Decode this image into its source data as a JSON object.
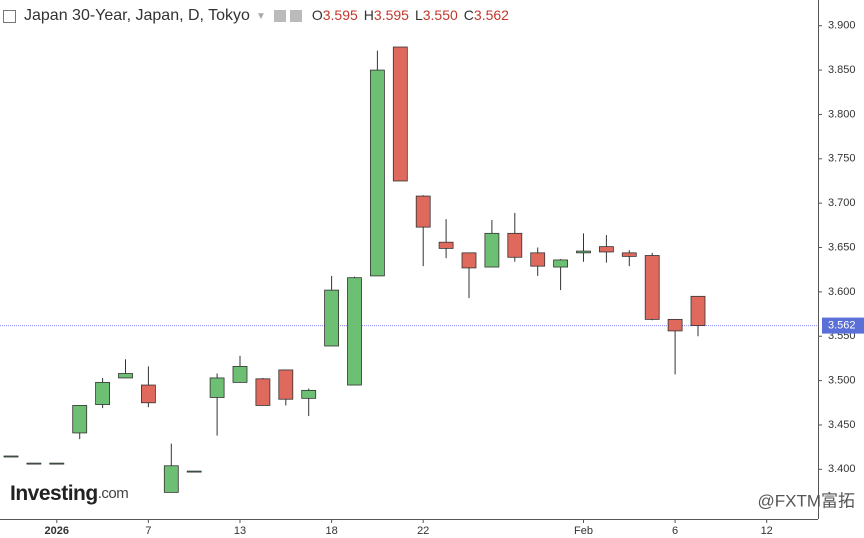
{
  "chart_data": {
    "type": "candlestick",
    "title": "Japan 30-Year, Japan, D, Tokyo",
    "ohlc_legend": [
      {
        "label": "O",
        "value": "3.595"
      },
      {
        "label": "H",
        "value": "3.595"
      },
      {
        "label": "L",
        "value": "3.550"
      },
      {
        "label": "C",
        "value": "3.562"
      }
    ],
    "categories": [
      null,
      null,
      "2026",
      null,
      null,
      null,
      "7",
      null,
      null,
      null,
      "13",
      null,
      null,
      null,
      "18",
      null,
      null,
      null,
      "22",
      null,
      null,
      null,
      null,
      null,
      null,
      "Feb",
      null,
      null,
      null,
      "6",
      null,
      null,
      null,
      "12"
    ],
    "open": [
      3.415,
      3.407,
      3.407,
      3.441,
      3.473,
      3.503,
      3.495,
      3.374,
      3.398,
      3.481,
      3.498,
      3.502,
      3.512,
      3.48,
      3.539,
      3.495,
      3.618,
      3.876,
      3.708,
      3.656,
      3.644,
      3.628,
      3.666,
      3.644,
      3.628,
      3.644,
      3.651,
      3.644,
      3.641,
      3.569,
      3.595,
      null,
      null,
      null
    ],
    "high": [
      3.415,
      3.407,
      3.407,
      3.472,
      3.503,
      3.524,
      3.516,
      3.429,
      3.398,
      3.508,
      3.528,
      3.503,
      3.512,
      3.491,
      3.618,
      3.617,
      3.872,
      3.876,
      3.709,
      3.682,
      3.644,
      3.681,
      3.689,
      3.65,
      3.637,
      3.666,
      3.664,
      3.647,
      3.644,
      3.569,
      3.595,
      null,
      null,
      null
    ],
    "low": [
      3.415,
      3.407,
      3.407,
      3.434,
      3.469,
      3.503,
      3.47,
      3.374,
      3.398,
      3.438,
      3.498,
      3.472,
      3.472,
      3.46,
      3.539,
      3.495,
      3.618,
      3.725,
      3.629,
      3.638,
      3.593,
      3.628,
      3.634,
      3.618,
      3.602,
      3.634,
      3.633,
      3.629,
      3.568,
      3.507,
      3.55,
      null,
      null,
      null
    ],
    "close": [
      3.415,
      3.407,
      3.407,
      3.472,
      3.498,
      3.508,
      3.475,
      3.404,
      3.398,
      3.503,
      3.516,
      3.472,
      3.479,
      3.489,
      3.602,
      3.616,
      3.85,
      3.725,
      3.673,
      3.649,
      3.627,
      3.666,
      3.639,
      3.629,
      3.636,
      3.646,
      3.645,
      3.64,
      3.569,
      3.556,
      3.562,
      null,
      null,
      null
    ],
    "up_color": "#6dbf73",
    "down_color": "#e0695e",
    "ylim": [
      3.344,
      3.929
    ],
    "yticks": [
      {
        "value": 3.4,
        "label": "3.400"
      },
      {
        "value": 3.45,
        "label": "3.450"
      },
      {
        "value": 3.5,
        "label": "3.500"
      },
      {
        "value": 3.55,
        "label": "3.550"
      },
      {
        "value": 3.6,
        "label": "3.600"
      },
      {
        "value": 3.65,
        "label": "3.650"
      },
      {
        "value": 3.7,
        "label": "3.700"
      },
      {
        "value": 3.75,
        "label": "3.750"
      },
      {
        "value": 3.8,
        "label": "3.800"
      },
      {
        "value": 3.85,
        "label": "3.850"
      },
      {
        "value": 3.9,
        "label": "3.900"
      }
    ],
    "last_price": {
      "value": 3.562,
      "label": "3.562"
    },
    "watermark": {
      "brand": "Investing",
      "suffix": ".com",
      "source": "@FXTM富拓"
    }
  }
}
